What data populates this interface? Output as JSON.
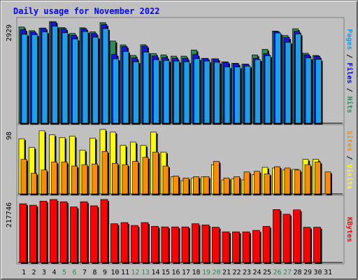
{
  "title": "Daily usage for November 2022",
  "colors": {
    "pages": "#2e8b57",
    "files": "#0000ff",
    "hits": "#2e8b57",
    "hits_bar": "#2e8b57",
    "files_bar": "#1515e0",
    "pages_bar": "#1ea0e8",
    "visits_bar": "#ffff00",
    "sites_bar": "#ff8c00",
    "kbytes_bar": "#ff0000",
    "pages_label": "#00a0ff",
    "files_label": "#0000ff",
    "hits_label": "#2e8b57",
    "sites_label": "#ff8c00",
    "visits_label": "#ffff00",
    "kbytes_label": "#ff0000",
    "weekday_label": "#000000",
    "weekend_label": "#2e8b57",
    "title_color": "#0000ff"
  },
  "chart_data": [
    {
      "type": "bar",
      "panel": "hits-files-pages",
      "ylabel_parts": [
        "Pages",
        "Files",
        "Hits"
      ],
      "separator": " / ",
      "ymax_label": "2929",
      "ylim": [
        0,
        2929
      ],
      "categories": [
        "1",
        "2",
        "3",
        "4",
        "5",
        "6",
        "7",
        "8",
        "9",
        "10",
        "11",
        "12",
        "13",
        "14",
        "15",
        "16",
        "17",
        "18",
        "19",
        "20",
        "21",
        "22",
        "23",
        "24",
        "25",
        "26",
        "27",
        "28",
        "29",
        "30",
        "31"
      ],
      "weekend_days": [
        "5",
        "6",
        "12",
        "13",
        "19",
        "20",
        "26",
        "27"
      ],
      "series": [
        {
          "name": "Hits",
          "values": [
            2778,
            2670,
            2744,
            2929,
            2760,
            2591,
            2752,
            2638,
            2903,
            2370,
            2260,
            1957,
            2265,
            2011,
            1972,
            1936,
            1936,
            2112,
            1872,
            1858,
            1771,
            1729,
            1706,
            1972,
            2133,
            2658,
            2530,
            2726,
            2020,
            1956,
            null
          ]
        },
        {
          "name": "Files",
          "values": [
            2702,
            2633,
            2744,
            2929,
            2729,
            2539,
            2729,
            2591,
            2847,
            1985,
            2213,
            1883,
            2226,
            1941,
            1896,
            1874,
            1874,
            1982,
            1873,
            1859,
            1762,
            1724,
            1701,
            1876,
            2006,
            2642,
            2470,
            2653,
            1975,
            1935,
            null
          ]
        },
        {
          "name": "Pages",
          "values": [
            2567,
            2555,
            2635,
            2802,
            2611,
            2429,
            2644,
            2482,
            2729,
            1856,
            2072,
            1771,
            2051,
            1834,
            1812,
            1793,
            1773,
            1862,
            1795,
            1759,
            1626,
            1622,
            1646,
            1835,
            1945,
            2604,
            2336,
            2578,
            1884,
            1842,
            null
          ]
        }
      ]
    },
    {
      "type": "bar",
      "panel": "visits-sites",
      "ylabel_parts": [
        "Sites",
        "Visits"
      ],
      "separator": " / ",
      "ymax_label": "98",
      "ylim": [
        0,
        98
      ],
      "categories": [
        "1",
        "2",
        "3",
        "4",
        "5",
        "6",
        "7",
        "8",
        "9",
        "10",
        "11",
        "12",
        "13",
        "14",
        "15",
        "16",
        "17",
        "18",
        "19",
        "20",
        "21",
        "22",
        "23",
        "24",
        "25",
        "26",
        "27",
        "28",
        "29",
        "30",
        "31"
      ],
      "series": [
        {
          "name": "Visits",
          "values": [
            83,
            70,
            95,
            89,
            85,
            87,
            66,
            84,
            97,
            93,
            73,
            78,
            73,
            93,
            63,
            26,
            20,
            24,
            26,
            44,
            21,
            23,
            21,
            29,
            40,
            39,
            36,
            37,
            52,
            52,
            null
          ]
        },
        {
          "name": "Sites",
          "values": [
            52,
            31,
            36,
            48,
            48,
            42,
            44,
            45,
            64,
            46,
            44,
            49,
            55,
            63,
            42,
            27,
            24,
            26,
            26,
            49,
            24,
            26,
            33,
            34,
            30,
            41,
            39,
            36,
            44,
            48,
            33
          ]
        }
      ]
    },
    {
      "type": "bar",
      "panel": "kbytes",
      "ylabel_parts": [
        "KBytes"
      ],
      "separator": "",
      "ymax_label": "217746",
      "ylim": [
        0,
        217746
      ],
      "categories": [
        "1",
        "2",
        "3",
        "4",
        "5",
        "6",
        "7",
        "8",
        "9",
        "10",
        "11",
        "12",
        "13",
        "14",
        "15",
        "16",
        "17",
        "18",
        "19",
        "20",
        "21",
        "22",
        "23",
        "24",
        "25",
        "26",
        "27",
        "28",
        "29",
        "30",
        "31"
      ],
      "series": [
        {
          "name": "KBytes",
          "values": [
            203000,
            198000,
            212000,
            217746,
            210000,
            192000,
            210000,
            196000,
            217746,
            134000,
            138000,
            128000,
            138000,
            125000,
            123000,
            123000,
            123000,
            134000,
            130000,
            122000,
            106000,
            106000,
            106000,
            111000,
            125000,
            183000,
            167000,
            182000,
            122000,
            122000,
            null
          ]
        }
      ]
    }
  ]
}
